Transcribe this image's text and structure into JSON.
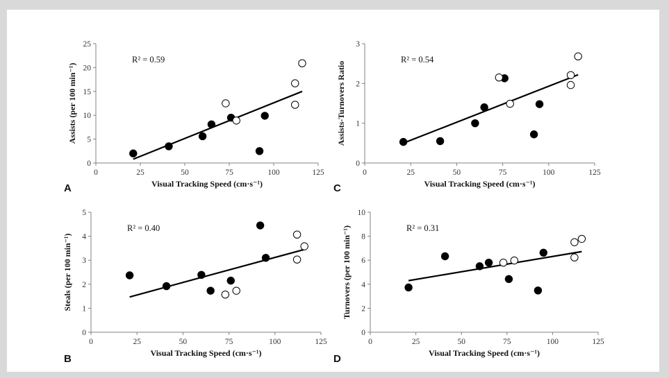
{
  "chart_data": [
    {
      "panel": "A",
      "type": "scatter",
      "xlabel": "Visual Tracking Speed (cm·s⁻¹)",
      "ylabel": "Assists (per 100 min⁻¹)",
      "annotation": "R² = 0.59",
      "xlim": [
        0,
        125
      ],
      "ylim": [
        0,
        25
      ],
      "xticks": [
        0,
        25,
        50,
        75,
        100,
        125
      ],
      "yticks": [
        0,
        5,
        10,
        15,
        20,
        25
      ],
      "filled_points": [
        [
          21,
          2.0
        ],
        [
          41,
          3.5
        ],
        [
          60,
          5.6
        ],
        [
          65,
          8.1
        ],
        [
          76,
          9.5
        ],
        [
          92,
          2.5
        ],
        [
          95,
          9.9
        ]
      ],
      "open_points": [
        [
          73,
          12.5
        ],
        [
          79,
          8.9
        ],
        [
          112,
          16.7
        ],
        [
          112,
          12.2
        ],
        [
          116,
          20.9
        ]
      ],
      "trendline": [
        [
          21,
          0.8
        ],
        [
          116,
          15.0
        ]
      ]
    },
    {
      "panel": "C",
      "type": "scatter",
      "xlabel": "Visual Tracking Speed (cm·s⁻¹)",
      "ylabel": "Assists-Turnovers Ratio",
      "annotation": "R² = 0.54",
      "xlim": [
        0,
        125
      ],
      "ylim": [
        0,
        3
      ],
      "xticks": [
        0,
        25,
        50,
        75,
        100,
        125
      ],
      "yticks": [
        0,
        1,
        2,
        3
      ],
      "filled_points": [
        [
          21,
          0.53
        ],
        [
          41,
          0.55
        ],
        [
          60,
          1.0
        ],
        [
          65,
          1.4
        ],
        [
          76,
          2.13
        ],
        [
          92,
          0.72
        ],
        [
          95,
          1.48
        ]
      ],
      "open_points": [
        [
          73,
          2.15
        ],
        [
          79,
          1.49
        ],
        [
          112,
          2.21
        ],
        [
          112,
          1.96
        ],
        [
          116,
          2.68
        ]
      ],
      "trendline": [
        [
          21,
          0.5
        ],
        [
          116,
          2.22
        ]
      ]
    },
    {
      "panel": "B",
      "type": "scatter",
      "xlabel": "Visual Tracking Speed (cm·s⁻¹)",
      "ylabel": "Steals (per 100 min⁻¹)",
      "annotation": "R² = 0.40",
      "xlim": [
        0,
        125
      ],
      "ylim": [
        0,
        5
      ],
      "xticks": [
        0,
        25,
        50,
        75,
        100,
        125
      ],
      "yticks": [
        0,
        1,
        2,
        3,
        4,
        5
      ],
      "filled_points": [
        [
          21,
          2.37
        ],
        [
          41,
          1.92
        ],
        [
          60,
          2.39
        ],
        [
          65,
          1.73
        ],
        [
          76,
          2.15
        ],
        [
          92,
          4.45
        ],
        [
          95,
          3.1
        ]
      ],
      "open_points": [
        [
          73,
          1.57
        ],
        [
          79,
          1.73
        ],
        [
          112,
          4.07
        ],
        [
          112,
          3.03
        ],
        [
          116,
          3.58
        ]
      ],
      "trendline": [
        [
          21,
          1.47
        ],
        [
          116,
          3.45
        ]
      ]
    },
    {
      "panel": "D",
      "type": "scatter",
      "xlabel": "Visual Tracking Speed (cm·s⁻¹)",
      "ylabel": "Turnovers (per 100 min⁻¹)",
      "annotation": "R² = 0.31",
      "xlim": [
        0,
        125
      ],
      "ylim": [
        0,
        10
      ],
      "xticks": [
        0,
        25,
        50,
        75,
        100,
        125
      ],
      "yticks": [
        0,
        2,
        4,
        6,
        8,
        10
      ],
      "filled_points": [
        [
          21,
          3.73
        ],
        [
          41,
          6.33
        ],
        [
          60,
          5.5
        ],
        [
          65,
          5.8
        ],
        [
          76,
          4.43
        ],
        [
          92,
          3.48
        ],
        [
          95,
          6.63
        ]
      ],
      "open_points": [
        [
          73,
          5.8
        ],
        [
          79,
          5.98
        ],
        [
          112,
          7.5
        ],
        [
          112,
          6.23
        ],
        [
          116,
          7.78
        ]
      ],
      "trendline": [
        [
          21,
          4.3
        ],
        [
          116,
          6.72
        ]
      ]
    }
  ]
}
